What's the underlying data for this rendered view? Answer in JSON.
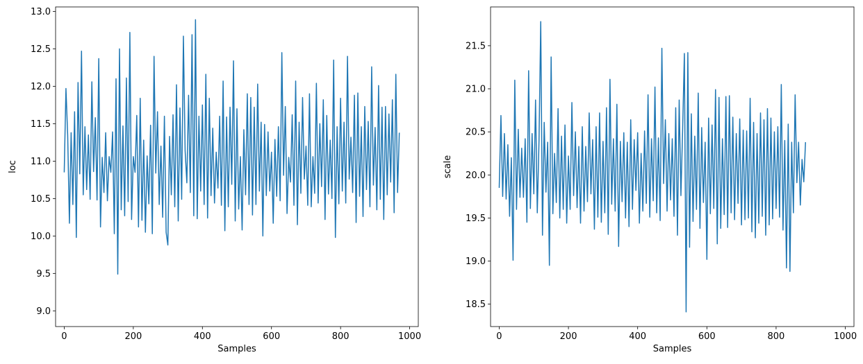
{
  "chart_data": [
    {
      "type": "line",
      "xlabel": "Samples",
      "ylabel": "loc",
      "xlim": [
        -25,
        1025
      ],
      "ylim": [
        8.79,
        13.06
      ],
      "xticks": [
        0,
        200,
        400,
        600,
        800,
        1000
      ],
      "xtick_labels": [
        "0",
        "200",
        "400",
        "600",
        "800",
        "1000"
      ],
      "yticks": [
        9.0,
        9.5,
        10.0,
        10.5,
        11.0,
        11.5,
        12.0,
        12.5,
        13.0
      ],
      "ytick_labels": [
        "9.0",
        "9.5",
        "10.0",
        "10.5",
        "11.0",
        "11.5",
        "12.0",
        "12.5",
        "13.0"
      ],
      "color": "#1f77b4",
      "grid": false,
      "series": [
        {
          "x_start": 0,
          "x_step": 5,
          "values": [
            10.85,
            11.97,
            11.35,
            10.17,
            11.38,
            10.42,
            11.66,
            9.98,
            12.05,
            10.83,
            12.47,
            10.55,
            11.46,
            10.62,
            11.35,
            10.49,
            12.06,
            10.86,
            11.58,
            10.48,
            12.37,
            10.12,
            11.05,
            10.58,
            11.38,
            10.47,
            11.06,
            10.85,
            11.39,
            10.03,
            12.1,
            9.49,
            12.5,
            10.35,
            11.47,
            10.27,
            12.11,
            10.46,
            12.72,
            10.22,
            11.06,
            10.85,
            11.61,
            10.12,
            11.84,
            10.21,
            11.28,
            10.05,
            11.07,
            10.43,
            11.48,
            10.03,
            12.4,
            10.84,
            11.66,
            10.42,
            11.2,
            10.25,
            11.6,
            10.05,
            9.88,
            11.33,
            10.55,
            11.62,
            10.39,
            12.02,
            10.2,
            11.71,
            10.49,
            12.67,
            11.14,
            10.71,
            11.88,
            10.58,
            12.69,
            10.27,
            12.89,
            10.23,
            11.6,
            10.6,
            11.75,
            10.42,
            12.16,
            10.24,
            11.84,
            10.54,
            11.44,
            10.44,
            11.12,
            10.64,
            11.6,
            10.41,
            12.07,
            10.07,
            11.59,
            10.39,
            11.72,
            10.69,
            12.34,
            10.2,
            11.7,
            10.36,
            11.06,
            10.08,
            11.42,
            10.55,
            11.9,
            10.42,
            11.85,
            10.28,
            11.72,
            10.42,
            12.03,
            10.6,
            11.52,
            10.0,
            11.49,
            10.54,
            11.39,
            10.6,
            11.12,
            10.17,
            11.29,
            10.53,
            11.46,
            10.47,
            12.45,
            10.81,
            11.73,
            10.3,
            11.05,
            10.72,
            11.62,
            10.41,
            12.07,
            10.15,
            11.52,
            10.57,
            11.85,
            10.76,
            11.2,
            10.41,
            11.9,
            10.39,
            11.06,
            10.57,
            12.04,
            10.44,
            11.5,
            10.66,
            11.82,
            10.22,
            11.61,
            10.56,
            11.28,
            10.5,
            12.35,
            9.98,
            11.46,
            10.43,
            11.84,
            10.6,
            11.52,
            10.44,
            12.4,
            10.76,
            11.32,
            10.58,
            11.88,
            10.18,
            11.91,
            10.53,
            11.46,
            10.26,
            11.73,
            10.62,
            11.53,
            10.39,
            12.26,
            10.68,
            11.45,
            10.35,
            12.01,
            10.49,
            11.72,
            10.22,
            11.73,
            10.55,
            11.63,
            10.72,
            11.82,
            10.31,
            12.16,
            10.58,
            11.38
          ]
        }
      ]
    },
    {
      "type": "line",
      "xlabel": "Samples",
      "ylabel": "scale",
      "xlim": [
        -25,
        1025
      ],
      "ylim": [
        18.24,
        21.95
      ],
      "xticks": [
        0,
        200,
        400,
        600,
        800,
        1000
      ],
      "xtick_labels": [
        "0",
        "200",
        "400",
        "600",
        "800",
        "1000"
      ],
      "yticks": [
        18.5,
        19.0,
        19.5,
        20.0,
        20.5,
        21.0,
        21.5
      ],
      "ytick_labels": [
        "18.5",
        "19.0",
        "19.5",
        "20.0",
        "20.5",
        "21.0",
        "21.5"
      ],
      "color": "#1f77b4",
      "grid": false,
      "series": [
        {
          "x_start": 0,
          "x_step": 5,
          "values": [
            19.85,
            20.69,
            19.75,
            20.48,
            19.72,
            20.35,
            19.52,
            20.2,
            19.01,
            21.1,
            19.6,
            20.53,
            19.74,
            20.31,
            19.74,
            20.42,
            19.45,
            21.21,
            19.61,
            20.48,
            19.78,
            20.87,
            19.56,
            20.4,
            21.78,
            19.3,
            20.61,
            19.8,
            20.38,
            18.95,
            21.37,
            19.55,
            20.25,
            19.68,
            20.77,
            19.5,
            20.45,
            19.6,
            20.58,
            19.44,
            20.22,
            19.6,
            20.84,
            19.76,
            20.5,
            19.62,
            20.33,
            19.44,
            20.56,
            19.58,
            20.33,
            19.69,
            20.72,
            19.78,
            20.41,
            19.37,
            20.56,
            19.51,
            20.72,
            19.45,
            20.39,
            19.56,
            20.78,
            19.31,
            21.11,
            19.66,
            20.42,
            19.58,
            20.82,
            19.17,
            20.39,
            19.69,
            20.49,
            19.5,
            20.38,
            19.4,
            20.64,
            19.6,
            20.41,
            19.82,
            20.49,
            19.44,
            20.25,
            19.58,
            20.51,
            19.67,
            20.93,
            19.51,
            20.42,
            19.7,
            21.02,
            19.56,
            20.43,
            19.47,
            21.47,
            19.9,
            20.64,
            19.58,
            20.48,
            19.71,
            20.42,
            19.52,
            20.78,
            19.3,
            20.87,
            19.76,
            20.53,
            21.41,
            18.41,
            21.42,
            19.16,
            20.71,
            19.46,
            20.45,
            19.6,
            20.95,
            19.38,
            20.55,
            19.68,
            20.38,
            19.02,
            20.66,
            19.55,
            20.58,
            19.61,
            20.99,
            19.2,
            20.9,
            19.38,
            20.42,
            19.54,
            20.91,
            19.39,
            20.92,
            19.56,
            20.67,
            19.48,
            20.48,
            19.67,
            20.65,
            19.42,
            20.52,
            19.48,
            20.51,
            19.5,
            20.89,
            19.34,
            20.61,
            19.27,
            20.48,
            19.44,
            20.72,
            19.52,
            20.64,
            19.3,
            20.77,
            19.42,
            20.66,
            19.49,
            20.5,
            19.61,
            20.56,
            19.51,
            21.05,
            19.36,
            20.4,
            18.92,
            20.59,
            18.88,
            20.38,
            19.56,
            20.93,
            19.91,
            20.38,
            19.65,
            20.18,
            19.92,
            20.38
          ]
        }
      ]
    }
  ]
}
